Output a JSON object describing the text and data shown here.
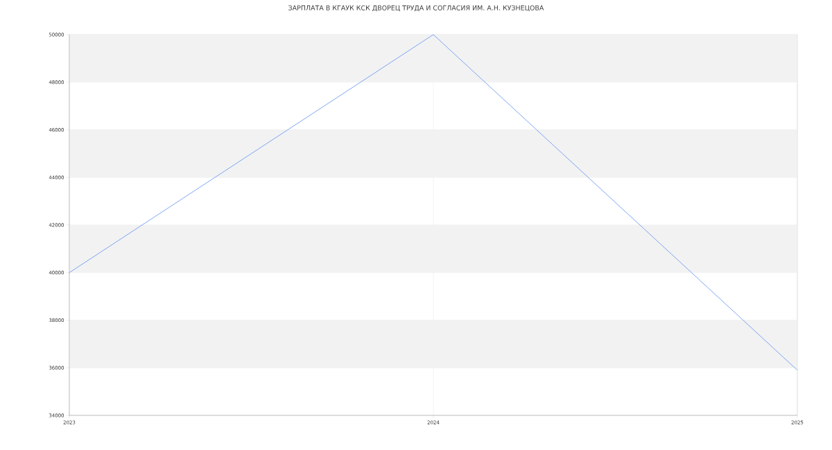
{
  "chart_data": {
    "type": "line",
    "title": "ЗАРПЛАТА В КГАУК КСК ДВОРЕЦ ТРУДА И СОГЛАСИЯ ИМ. А.Н. КУЗНЕЦОВА",
    "x": [
      2023,
      2024,
      2025
    ],
    "series": [
      {
        "color": "#6f9cf2",
        "values": [
          40000,
          50000,
          35900
        ]
      }
    ],
    "xlim": [
      2023,
      2025
    ],
    "xticks": [
      2023,
      2024,
      2025
    ],
    "ylim": [
      34000,
      50000
    ],
    "yticks": [
      34000,
      36000,
      38000,
      40000,
      42000,
      44000,
      46000,
      48000,
      50000
    ],
    "grid": true,
    "marker": "none",
    "line_style": "solid"
  }
}
